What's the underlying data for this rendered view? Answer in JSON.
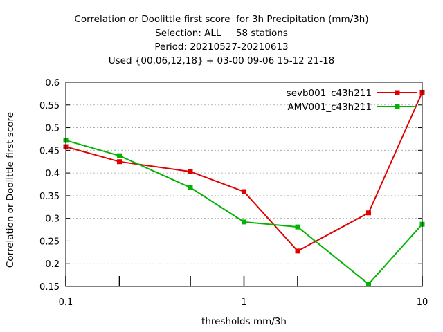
{
  "chart_data": {
    "type": "line",
    "title_lines": [
      "Correlation or Doolittle first score  for 3h Precipitation (mm/3h)",
      "Selection: ALL     58 stations",
      "Period: 20210527-20210613",
      "Used {00,06,12,18} + 03-00 09-06 15-12 21-18"
    ],
    "xlabel": "thresholds mm/3h",
    "ylabel": "Correlation or Doolittle first score",
    "x_scale": "log",
    "xlim": [
      0.1,
      10
    ],
    "ylim": [
      0.15,
      0.6
    ],
    "x_ticks": [
      0.1,
      1,
      10
    ],
    "x_tick_labels": [
      "0.1",
      "1",
      "10"
    ],
    "x_minor_ticks": [
      0.2,
      0.5,
      2
    ],
    "y_ticks": [
      0.15,
      0.2,
      0.25,
      0.3,
      0.35,
      0.4,
      0.45,
      0.5,
      0.55,
      0.6
    ],
    "y_tick_labels": [
      "0.15",
      "0.2",
      "0.25",
      "0.3",
      "0.35",
      "0.4",
      "0.45",
      "0.5",
      "0.55",
      "0.6"
    ],
    "grid": true,
    "legend_position": "top-right",
    "x": [
      0.1,
      0.2,
      0.5,
      1,
      2,
      5,
      10
    ],
    "series": [
      {
        "name": "sevb001_c43h211",
        "color": "#e00000",
        "values": [
          0.458,
          0.425,
          0.403,
          0.359,
          0.228,
          0.312,
          0.578
        ]
      },
      {
        "name": "AMV001_c43h211",
        "color": "#00b400",
        "values": [
          0.472,
          0.438,
          0.368,
          0.292,
          0.281,
          0.155,
          0.287
        ]
      }
    ]
  }
}
